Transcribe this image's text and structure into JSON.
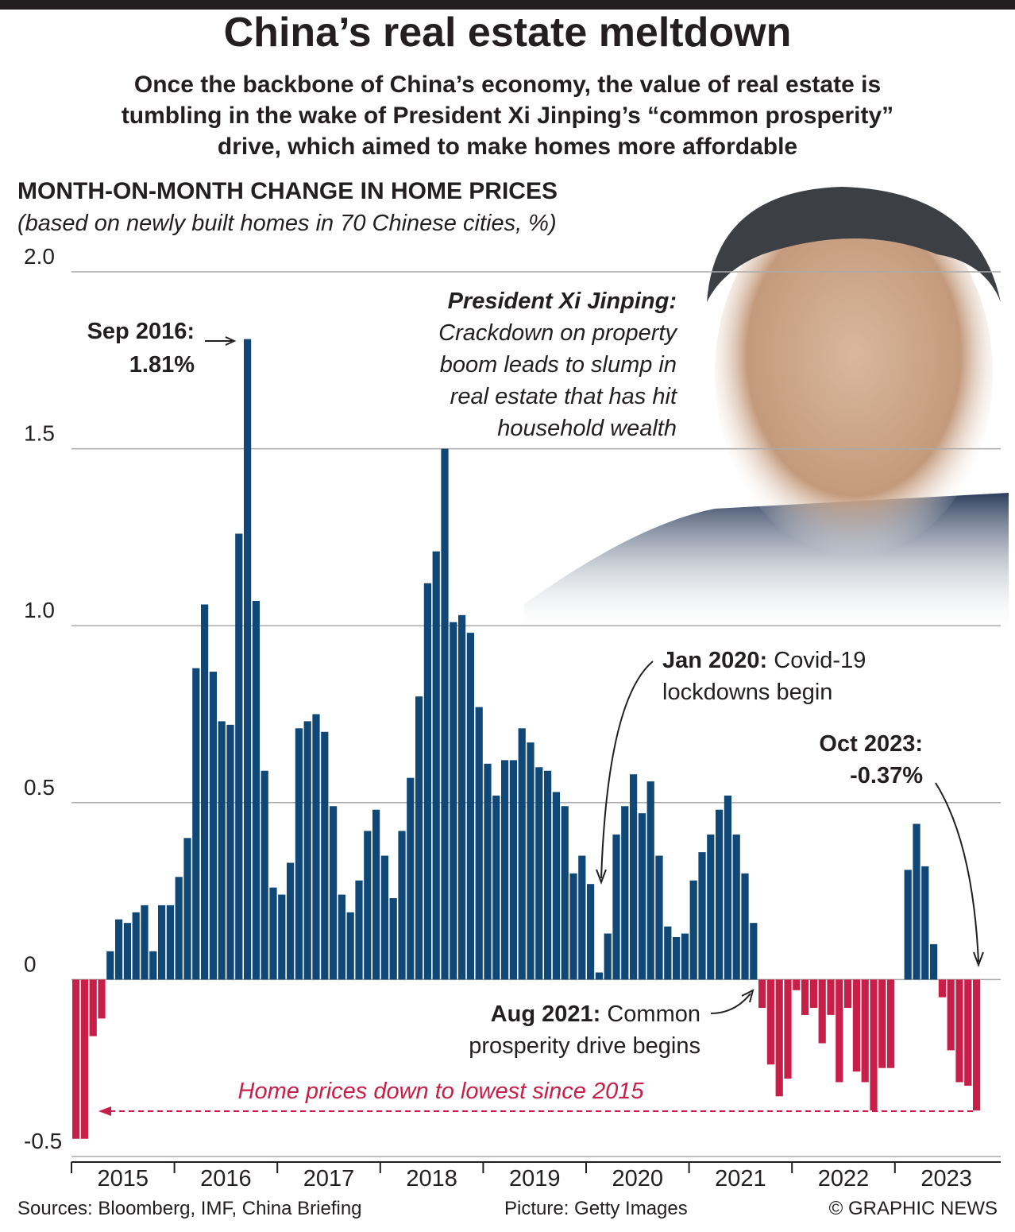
{
  "chart_data": {
    "type": "bar",
    "title": "China’s real estate meltdown",
    "subtitle": [
      "Once the backbone of China’s economy, the value of real estate is",
      "tumbling in the wake of President Xi Jinping’s “common prosperity”",
      "drive, which aimed to make homes more affordable"
    ],
    "y_title": "MONTH-ON-MONTH CHANGE IN HOME PRICES",
    "y_subtitle": "(based on newly built homes in 70 Chinese cities, %)",
    "years": [
      "2015",
      "2016",
      "2017",
      "2018",
      "2019",
      "2020",
      "2021",
      "2022",
      "2023"
    ],
    "values": [
      [
        -0.45,
        -0.45,
        -0.16,
        -0.11,
        0.08,
        0.17,
        0.16,
        0.19,
        0.21,
        0.08,
        0.21,
        0.21
      ],
      [
        0.29,
        0.4,
        0.88,
        1.06,
        0.87,
        0.73,
        0.72,
        1.26,
        1.81,
        1.07,
        0.59,
        0.26
      ],
      [
        0.24,
        0.33,
        0.71,
        0.73,
        0.75,
        0.7,
        0.49,
        0.24,
        0.19,
        0.28,
        0.42,
        0.48
      ],
      [
        0.35,
        0.23,
        0.42,
        0.57,
        0.8,
        1.12,
        1.21,
        1.5,
        1.01,
        1.03,
        0.98,
        0.77
      ],
      [
        0.61,
        0.52,
        0.62,
        0.62,
        0.71,
        0.67,
        0.6,
        0.59,
        0.53,
        0.49,
        0.3,
        0.35
      ],
      [
        0.27,
        0.02,
        0.13,
        0.41,
        0.49,
        0.58,
        0.47,
        0.56,
        0.35,
        0.15,
        0.12,
        0.13
      ],
      [
        0.28,
        0.36,
        0.41,
        0.48,
        0.52,
        0.41,
        0.3,
        0.16,
        -0.08,
        -0.24,
        -0.33,
        -0.28
      ],
      [
        -0.03,
        -0.1,
        -0.08,
        -0.18,
        -0.1,
        -0.29,
        -0.08,
        -0.26,
        -0.29,
        -0.37,
        -0.25,
        -0.25
      ],
      [
        0.0,
        0.31,
        0.44,
        0.32,
        0.1,
        -0.05,
        -0.2,
        -0.29,
        -0.3,
        -0.37
      ]
    ],
    "color_positive": "#0f4776",
    "color_negative": "#c71f48",
    "ylim": [
      -0.5,
      2.0
    ],
    "yticks": [
      {
        "value": 2,
        "label": "2.0"
      },
      1.5,
      {
        "value": 1,
        "label": "1.0"
      },
      0.5,
      0,
      -0.5
    ],
    "grid": true,
    "annotations": {
      "sep2016": [
        "Sep 2016:",
        "1.81%"
      ],
      "xi": [
        "President Xi Jinping:",
        "Crackdown on property",
        "boom leads to slump in",
        "real estate that has hit",
        "household wealth"
      ],
      "jan2020": [
        "Jan 2020:",
        "Covid-19",
        "lockdowns begin"
      ],
      "oct2023": [
        "Oct 2023:",
        "-0.37%"
      ],
      "aug2021": [
        "Aug 2021:",
        "Common",
        "prosperity drive begins"
      ],
      "lowest": "Home prices down to lowest since 2015"
    },
    "sources": "Sources: Bloomberg, IMF, China Briefing",
    "picture": "Picture: Getty Images",
    "credit": "© GRAPHIC NEWS"
  }
}
